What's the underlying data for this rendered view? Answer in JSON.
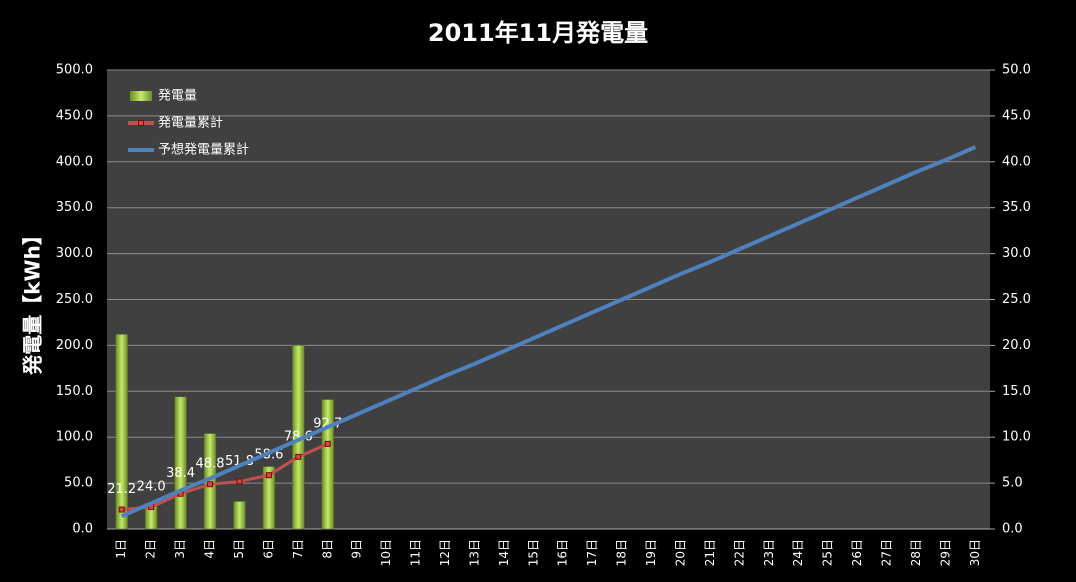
{
  "chart_data": {
    "type": "bar-line",
    "title": "2011年11月発電量",
    "y_label": "発電量【kWh】",
    "categories": [
      "1日",
      "2日",
      "3日",
      "4日",
      "5日",
      "6日",
      "7日",
      "8日",
      "9日",
      "10日",
      "11日",
      "12日",
      "13日",
      "14日",
      "15日",
      "16日",
      "17日",
      "18日",
      "19日",
      "20日",
      "21日",
      "22日",
      "23日",
      "24日",
      "25日",
      "26日",
      "27日",
      "28日",
      "29日",
      "30日"
    ],
    "series": [
      {
        "name": "発電量",
        "type": "bar",
        "axis": "y2",
        "color": "#9acd32",
        "values": [
          21.2,
          2.8,
          14.4,
          10.4,
          3.0,
          6.8,
          20.0,
          14.1,
          null,
          null,
          null,
          null,
          null,
          null,
          null,
          null,
          null,
          null,
          null,
          null,
          null,
          null,
          null,
          null,
          null,
          null,
          null,
          null,
          null,
          null
        ]
      },
      {
        "name": "発電量累計",
        "type": "line",
        "color": "#c0504d",
        "marker": true,
        "values": [
          21.2,
          24.0,
          38.4,
          48.8,
          51.8,
          58.6,
          78.6,
          92.7,
          null,
          null,
          null,
          null,
          null,
          null,
          null,
          null,
          null,
          null,
          null,
          null,
          null,
          null,
          null,
          null,
          null,
          null,
          null,
          null,
          null,
          null
        ],
        "value_labels": [
          "21.2",
          "24.0",
          "38.4",
          "48.8",
          "51.8",
          "58.6",
          "78.6",
          "92.7",
          null,
          null,
          null,
          null,
          null,
          null,
          null,
          null,
          null,
          null,
          null,
          null,
          null,
          null,
          null,
          null,
          null,
          null,
          null,
          null,
          null,
          null
        ]
      },
      {
        "name": "予想発電量累計",
        "type": "line",
        "color": "#4f81bd",
        "values": [
          14,
          28,
          42,
          55,
          69,
          83,
          97,
          111,
          125,
          139,
          153,
          167,
          180,
          194,
          208,
          222,
          236,
          250,
          264,
          278,
          291,
          305,
          319,
          333,
          347,
          361,
          375,
          389,
          402,
          416
        ]
      }
    ],
    "ylim": [
      0,
      500
    ],
    "yticks": [
      {
        "value": 0,
        "label": "0.0"
      },
      {
        "value": 50,
        "label": "50.0"
      },
      {
        "value": 100,
        "label": "100.0"
      },
      {
        "value": 150,
        "label": "150.0"
      },
      {
        "value": 200,
        "label": "200.0"
      },
      {
        "value": 250,
        "label": "250.0"
      },
      {
        "value": 300,
        "label": "300.0"
      },
      {
        "value": 350,
        "label": "350.0"
      },
      {
        "value": 400,
        "label": "400.0"
      },
      {
        "value": 450,
        "label": "450.0"
      },
      {
        "value": 500,
        "label": "500.0"
      }
    ],
    "y2lim": [
      0,
      50
    ],
    "y2ticks": [
      {
        "value": 0,
        "label": "0.0"
      },
      {
        "value": 5,
        "label": "5.0"
      },
      {
        "value": 10,
        "label": "10.0"
      },
      {
        "value": 15,
        "label": "15.0"
      },
      {
        "value": 20,
        "label": "20.0"
      },
      {
        "value": 25,
        "label": "25.0"
      },
      {
        "value": 30,
        "label": "30.0"
      },
      {
        "value": 35,
        "label": "35.0"
      },
      {
        "value": 40,
        "label": "40.0"
      },
      {
        "value": 45,
        "label": "45.0"
      },
      {
        "value": 50,
        "label": "50.0"
      }
    ],
    "grid": true,
    "legend": "top-left"
  }
}
